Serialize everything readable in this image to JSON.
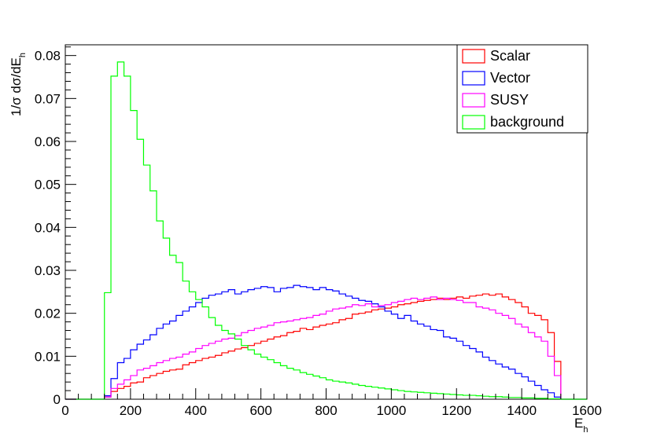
{
  "chart_data": {
    "type": "histogram",
    "xlabel": "E",
    "xlabel_sub": "h",
    "ylabel": "1/σ dσ/dE",
    "ylabel_sub": "h",
    "xlim": [
      0,
      1600
    ],
    "ylim": [
      0,
      0.0825
    ],
    "bin_width": 20,
    "x_start": 0,
    "x_ticks": [
      0,
      200,
      400,
      600,
      800,
      1000,
      1200,
      1400,
      1600
    ],
    "x_tick_labels": [
      "0",
      "200",
      "400",
      "600",
      "800",
      "1000",
      "1200",
      "1400",
      "1600"
    ],
    "y_ticks": [
      0,
      0.01,
      0.02,
      0.03,
      0.04,
      0.05,
      0.06,
      0.07,
      0.08
    ],
    "y_tick_labels": [
      "0",
      "0.01",
      "0.02",
      "0.03",
      "0.04",
      "0.05",
      "0.06",
      "0.07",
      "0.08"
    ],
    "legend_position": "top-right",
    "series": [
      {
        "name": "Scalar",
        "color": "#ff0000",
        "values": [
          0,
          0,
          0,
          0,
          0,
          0,
          0.0005,
          0.0018,
          0.0025,
          0.003,
          0.0038,
          0.004,
          0.005,
          0.0055,
          0.006,
          0.0065,
          0.0068,
          0.007,
          0.008,
          0.0085,
          0.009,
          0.0095,
          0.0098,
          0.0102,
          0.0108,
          0.0112,
          0.0117,
          0.012,
          0.0125,
          0.013,
          0.0135,
          0.014,
          0.0145,
          0.0148,
          0.0155,
          0.0158,
          0.0165,
          0.0162,
          0.0168,
          0.0172,
          0.0175,
          0.0178,
          0.0185,
          0.0188,
          0.0198,
          0.02,
          0.0203,
          0.0208,
          0.021,
          0.0212,
          0.0215,
          0.022,
          0.0222,
          0.0225,
          0.0228,
          0.023,
          0.0232,
          0.0235,
          0.0232,
          0.0235,
          0.0238,
          0.0235,
          0.024,
          0.0242,
          0.0245,
          0.0242,
          0.0245,
          0.0238,
          0.0232,
          0.0225,
          0.0215,
          0.02,
          0.0195,
          0.0185,
          0.0155,
          0.0088,
          0,
          0,
          0,
          0
        ]
      },
      {
        "name": "Vector",
        "color": "#0000ff",
        "values": [
          0,
          0,
          0,
          0,
          0,
          0,
          0.0008,
          0.0048,
          0.0085,
          0.0095,
          0.0115,
          0.0128,
          0.0138,
          0.015,
          0.0165,
          0.0175,
          0.0182,
          0.0195,
          0.0205,
          0.0215,
          0.0225,
          0.0235,
          0.0242,
          0.0245,
          0.025,
          0.0255,
          0.0245,
          0.025,
          0.0255,
          0.0258,
          0.0262,
          0.026,
          0.025,
          0.0258,
          0.026,
          0.0265,
          0.0262,
          0.026,
          0.0255,
          0.026,
          0.0255,
          0.0252,
          0.0245,
          0.024,
          0.0235,
          0.023,
          0.0228,
          0.0222,
          0.0215,
          0.0205,
          0.0198,
          0.0188,
          0.0195,
          0.0182,
          0.0175,
          0.017,
          0.0162,
          0.016,
          0.0145,
          0.0142,
          0.0135,
          0.0125,
          0.0118,
          0.011,
          0.0098,
          0.009,
          0.0082,
          0.0075,
          0.007,
          0.006,
          0.0052,
          0.0042,
          0.0032,
          0.0022,
          0.0015,
          0.0005,
          0,
          0,
          0,
          0
        ]
      },
      {
        "name": "SUSY",
        "color": "#ff00ff",
        "values": [
          0,
          0,
          0,
          0,
          0,
          0,
          0.0005,
          0.0025,
          0.0035,
          0.0045,
          0.0055,
          0.0068,
          0.0072,
          0.0078,
          0.0085,
          0.009,
          0.0095,
          0.0098,
          0.0105,
          0.011,
          0.0118,
          0.0125,
          0.013,
          0.0135,
          0.014,
          0.0142,
          0.0148,
          0.0155,
          0.016,
          0.0165,
          0.0168,
          0.0172,
          0.0178,
          0.018,
          0.0182,
          0.0185,
          0.0188,
          0.019,
          0.0195,
          0.0198,
          0.0205,
          0.021,
          0.0212,
          0.0215,
          0.022,
          0.0218,
          0.0222,
          0.0215,
          0.0218,
          0.022,
          0.0225,
          0.0228,
          0.0232,
          0.0235,
          0.0232,
          0.0235,
          0.0238,
          0.0232,
          0.0235,
          0.0232,
          0.023,
          0.0225,
          0.0225,
          0.0215,
          0.0212,
          0.0208,
          0.02,
          0.0195,
          0.0188,
          0.0175,
          0.0168,
          0.0155,
          0.0145,
          0.0135,
          0.01,
          0.0055,
          0,
          0,
          0,
          0
        ]
      },
      {
        "name": "background",
        "color": "#00ff00",
        "values": [
          0,
          0,
          0,
          0,
          0,
          0,
          0.0248,
          0.0752,
          0.0785,
          0.0752,
          0.0672,
          0.0605,
          0.0545,
          0.0485,
          0.0415,
          0.0375,
          0.0335,
          0.0318,
          0.0275,
          0.025,
          0.0232,
          0.0215,
          0.019,
          0.0172,
          0.016,
          0.0152,
          0.014,
          0.0125,
          0.0115,
          0.0105,
          0.0098,
          0.0092,
          0.0085,
          0.0078,
          0.0072,
          0.0068,
          0.0062,
          0.0058,
          0.0054,
          0.005,
          0.0045,
          0.0042,
          0.004,
          0.0038,
          0.0035,
          0.0032,
          0.003,
          0.0028,
          0.0026,
          0.0024,
          0.0022,
          0.002,
          0.0018,
          0.0017,
          0.0016,
          0.0015,
          0.0014,
          0.0013,
          0.0012,
          0.0011,
          0.001,
          0.0009,
          0.0009,
          0.0008,
          0.0007,
          0.0006,
          0.0006,
          0.0005,
          0.0004,
          0.0004,
          0.0003,
          0.0003,
          0.0002,
          0.0002,
          0.0001,
          0.0001,
          0,
          0,
          0,
          0
        ]
      }
    ]
  }
}
